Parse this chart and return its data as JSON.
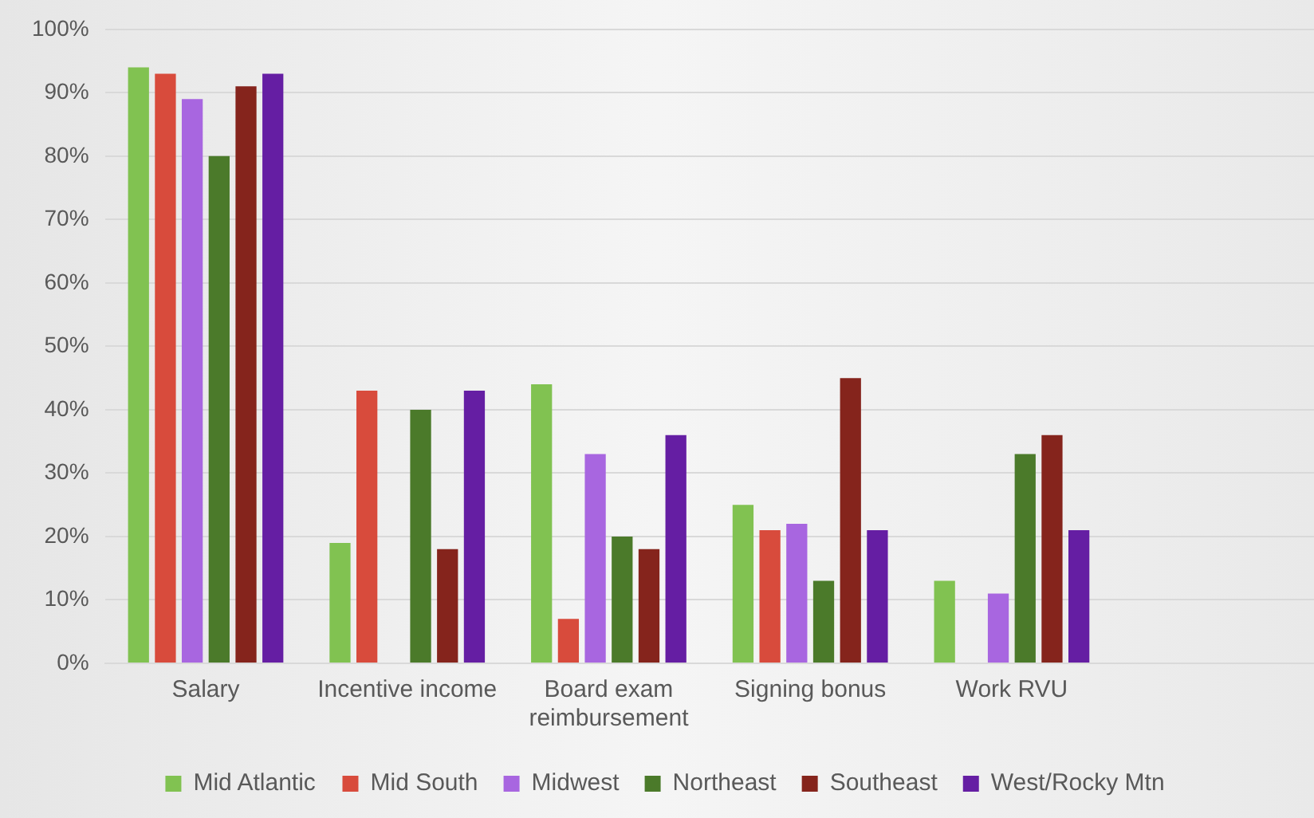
{
  "chart_data": {
    "type": "bar",
    "categories": [
      "Salary",
      "Incentive income",
      "Board exam reimbursement",
      "Signing bonus",
      "Work RVU",
      null
    ],
    "series": [
      {
        "name": "Mid Atlantic",
        "color": "#81c251",
        "values": [
          94,
          19,
          44,
          25,
          13,
          null
        ]
      },
      {
        "name": "Mid South",
        "color": "#d84b3c",
        "values": [
          93,
          43,
          7,
          21,
          null,
          null
        ]
      },
      {
        "name": "Midwest",
        "color": "#a866e0",
        "values": [
          89,
          null,
          33,
          22,
          11,
          null
        ]
      },
      {
        "name": "Northeast",
        "color": "#4b7a2a",
        "values": [
          80,
          40,
          20,
          13,
          33,
          null
        ]
      },
      {
        "name": "Southeast",
        "color": "#85241c",
        "values": [
          91,
          18,
          18,
          45,
          36,
          null
        ]
      },
      {
        "name": "West/Rocky Mtn",
        "color": "#651ea3",
        "values": [
          93,
          43,
          36,
          21,
          21,
          null
        ]
      }
    ],
    "ylim": [
      0,
      100
    ],
    "yticks": [
      {
        "value": 0,
        "label": "0%"
      },
      {
        "value": 10,
        "label": "10%"
      },
      {
        "value": 20,
        "label": "20%"
      },
      {
        "value": 30,
        "label": "30%"
      },
      {
        "value": 40,
        "label": "40%"
      },
      {
        "value": 50,
        "label": "50%"
      },
      {
        "value": 60,
        "label": "60%"
      },
      {
        "value": 70,
        "label": "70%"
      },
      {
        "value": 80,
        "label": "80%"
      },
      {
        "value": 90,
        "label": "90%"
      },
      {
        "value": 100,
        "label": "100%"
      }
    ],
    "grid": "y",
    "legend": "bottom"
  }
}
